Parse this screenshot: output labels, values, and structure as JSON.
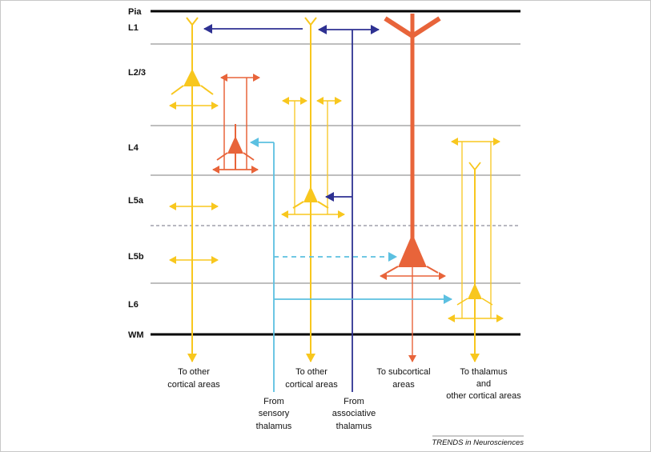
{
  "colors": {
    "yellow": "#F8C71E",
    "orange": "#E8643A",
    "navy": "#2E3192",
    "cyan": "#5CC0E1",
    "boundary": "#000000",
    "layer_line": "#BEBEBE",
    "dashed": "#8D8D9A"
  },
  "layers": [
    "Pia",
    "L1",
    "L2/3",
    "L4",
    "L5a",
    "L5b",
    "L6",
    "WM"
  ],
  "captions": {
    "cortical_1": [
      "To other",
      "cortical areas"
    ],
    "cortical_2": [
      "To other",
      "cortical areas"
    ],
    "subcortical": [
      "To subcortical",
      "areas"
    ],
    "thalamus": [
      "To thalamus",
      "and",
      "other cortical areas"
    ],
    "sensory": [
      "From",
      "sensory",
      "thalamus"
    ],
    "associative": [
      "From",
      "associative",
      "thalamus"
    ]
  },
  "credit": "TRENDS in Neurosciences"
}
